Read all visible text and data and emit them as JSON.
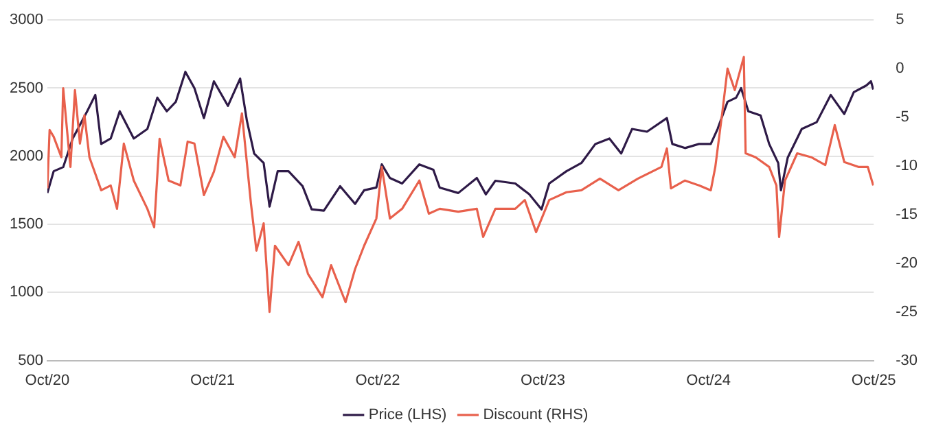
{
  "chart_data": {
    "type": "line",
    "xlim": [
      "2020-10-01",
      "2025-10-01"
    ],
    "xticks": [
      {
        "value": "2020-10-01",
        "label": "Oct/20"
      },
      {
        "value": "2021-10-01",
        "label": "Oct/21"
      },
      {
        "value": "2022-10-01",
        "label": "Oct/22"
      },
      {
        "value": "2023-10-01",
        "label": "Oct/23"
      },
      {
        "value": "2024-10-01",
        "label": "Oct/24"
      },
      {
        "value": "2025-10-01",
        "label": "Oct/25"
      }
    ],
    "ylim": [
      500,
      3000
    ],
    "yticks": [
      500,
      1000,
      1500,
      2000,
      2500,
      3000
    ],
    "y2lim": [
      -30,
      5
    ],
    "y2ticks": [
      -30,
      -25,
      -20,
      -15,
      -10,
      -5,
      0,
      5
    ],
    "grid": "y",
    "legend": "bottom",
    "marker": "none",
    "line_style": "solid",
    "series": [
      {
        "name": "Price (LHS)",
        "color": "#2e1a47",
        "axis": "y",
        "x": [
          "2020-10-01",
          "2020-10-15",
          "2020-11-05",
          "2020-11-26",
          "2020-12-28",
          "2021-01-15",
          "2021-01-28",
          "2021-02-18",
          "2021-03-10",
          "2021-04-10",
          "2021-05-10",
          "2021-06-01",
          "2021-06-22",
          "2021-07-12",
          "2021-08-02",
          "2021-08-22",
          "2021-09-12",
          "2021-10-04",
          "2021-11-04",
          "2021-12-01",
          "2021-12-16",
          "2022-01-01",
          "2022-01-22",
          "2022-02-04",
          "2022-02-22",
          "2022-03-18",
          "2022-04-18",
          "2022-05-08",
          "2022-06-04",
          "2022-07-10",
          "2022-08-12",
          "2022-09-01",
          "2022-09-28",
          "2022-10-10",
          "2022-10-28",
          "2022-11-24",
          "2023-01-01",
          "2023-02-01",
          "2023-02-15",
          "2023-03-28",
          "2023-05-08",
          "2023-05-28",
          "2023-06-18",
          "2023-08-01",
          "2023-09-01",
          "2023-09-28",
          "2023-10-15",
          "2023-11-22",
          "2023-12-25",
          "2024-01-25",
          "2024-02-25",
          "2024-03-22",
          "2024-04-15",
          "2024-05-18",
          "2024-07-01",
          "2024-07-13",
          "2024-08-10",
          "2024-09-10",
          "2024-10-06",
          "2024-10-21",
          "2024-11-12",
          "2024-12-01",
          "2024-12-12",
          "2024-12-28",
          "2025-01-24",
          "2025-02-12",
          "2025-03-04",
          "2025-03-10",
          "2025-03-25",
          "2025-04-25",
          "2025-05-28",
          "2025-06-28",
          "2025-07-28",
          "2025-08-18",
          "2025-09-15",
          "2025-09-25",
          "2025-09-30"
        ],
        "values": [
          1730,
          1890,
          1920,
          2130,
          2330,
          2450,
          2090,
          2130,
          2330,
          2130,
          2200,
          2430,
          2330,
          2400,
          2620,
          2500,
          2280,
          2550,
          2370,
          2570,
          2260,
          2020,
          1950,
          1630,
          1890,
          1890,
          1780,
          1610,
          1600,
          1780,
          1650,
          1750,
          1770,
          1940,
          1840,
          1800,
          1940,
          1900,
          1770,
          1730,
          1840,
          1720,
          1820,
          1800,
          1720,
          1610,
          1800,
          1890,
          1950,
          2090,
          2130,
          2020,
          2200,
          2180,
          2280,
          2090,
          2060,
          2090,
          2090,
          2200,
          2400,
          2430,
          2500,
          2330,
          2300,
          2090,
          1950,
          1750,
          1990,
          2200,
          2250,
          2450,
          2310,
          2470,
          2520,
          2550,
          2490
        ]
      },
      {
        "name": "Discount (RHS)",
        "color": "#e8604c",
        "axis": "y2",
        "x": [
          "2020-10-01",
          "2020-10-06",
          "2020-10-15",
          "2020-11-01",
          "2020-11-05",
          "2020-11-21",
          "2020-12-01",
          "2020-12-12",
          "2020-12-22",
          "2021-01-02",
          "2021-01-28",
          "2021-02-18",
          "2021-03-04",
          "2021-03-19",
          "2021-04-10",
          "2021-05-10",
          "2021-05-25",
          "2021-06-06",
          "2021-06-26",
          "2021-07-22",
          "2021-08-07",
          "2021-08-22",
          "2021-09-12",
          "2021-10-04",
          "2021-10-25",
          "2021-11-19",
          "2021-12-05",
          "2021-12-25",
          "2022-01-06",
          "2022-01-22",
          "2022-02-04",
          "2022-02-16",
          "2022-03-18",
          "2022-04-09",
          "2022-04-30",
          "2022-06-01",
          "2022-06-20",
          "2022-07-22",
          "2022-08-12",
          "2022-09-01",
          "2022-09-28",
          "2022-10-10",
          "2022-10-28",
          "2022-11-24",
          "2023-01-01",
          "2023-01-22",
          "2023-02-15",
          "2023-03-28",
          "2023-05-08",
          "2023-05-22",
          "2023-06-18",
          "2023-08-01",
          "2023-08-22",
          "2023-09-16",
          "2023-10-15",
          "2023-11-22",
          "2023-12-25",
          "2024-02-04",
          "2024-03-16",
          "2024-04-28",
          "2024-06-19",
          "2024-07-01",
          "2024-07-10",
          "2024-08-10",
          "2024-09-10",
          "2024-10-06",
          "2024-10-16",
          "2024-11-01",
          "2024-11-12",
          "2024-11-28",
          "2024-12-18",
          "2024-12-22",
          "2025-01-13",
          "2025-02-12",
          "2025-02-28",
          "2025-03-06",
          "2025-03-19",
          "2025-04-15",
          "2025-05-16",
          "2025-06-16",
          "2025-07-07",
          "2025-07-28",
          "2025-08-28",
          "2025-09-18",
          "2025-09-30"
        ],
        "values": [
          -12.3,
          -6.3,
          -7.0,
          -9.1,
          -2.0,
          -10.1,
          -2.2,
          -7.7,
          -4.8,
          -9.1,
          -12.5,
          -12.0,
          -14.4,
          -7.7,
          -11.5,
          -14.4,
          -16.3,
          -7.2,
          -11.5,
          -12.0,
          -7.5,
          -7.7,
          -13.0,
          -10.6,
          -7.0,
          -9.1,
          -4.6,
          -13.9,
          -18.7,
          -15.9,
          -25.0,
          -18.2,
          -20.2,
          -17.8,
          -21.1,
          -23.5,
          -20.2,
          -24.0,
          -20.6,
          -18.2,
          -15.4,
          -10.1,
          -15.4,
          -14.4,
          -11.5,
          -14.9,
          -14.4,
          -14.7,
          -14.4,
          -17.3,
          -14.4,
          -14.4,
          -13.5,
          -16.8,
          -13.5,
          -12.7,
          -12.5,
          -11.3,
          -12.5,
          -11.3,
          -10.1,
          -8.2,
          -12.3,
          -11.5,
          -12.0,
          -12.5,
          -10.1,
          -4.3,
          0.0,
          -2.2,
          1.2,
          -8.7,
          -9.1,
          -10.1,
          -12.0,
          -17.3,
          -11.5,
          -8.7,
          -9.1,
          -9.9,
          -5.8,
          -9.6,
          -10.1,
          -10.1,
          -12.0
        ]
      }
    ]
  }
}
